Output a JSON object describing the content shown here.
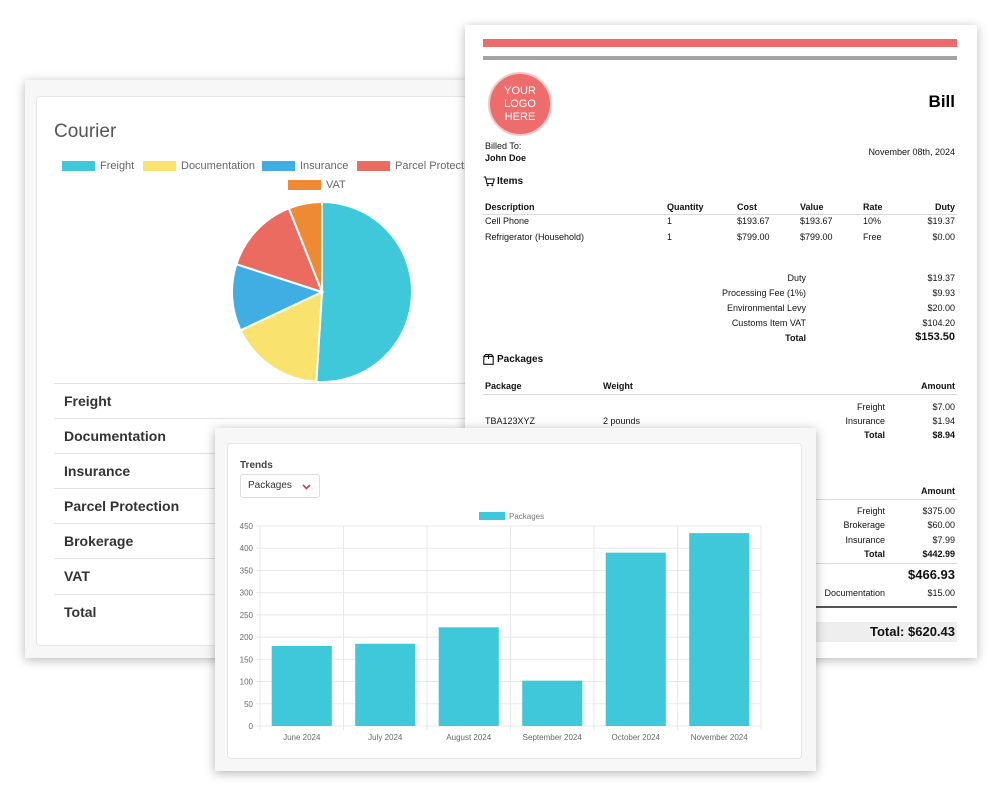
{
  "courier": {
    "title": "Courier",
    "legend": [
      {
        "label": "Freight",
        "color": "#3fc8da"
      },
      {
        "label": "Documentation",
        "color": "#fae26e"
      },
      {
        "label": "Insurance",
        "color": "#40aee3"
      },
      {
        "label": "Parcel Protection",
        "color": "#ec6b61"
      },
      {
        "label": "VAT",
        "color": "#ee8a33"
      }
    ],
    "rows": [
      "Freight",
      "Documentation",
      "Insurance",
      "Parcel Protection",
      "Brokerage",
      "VAT",
      "Total"
    ]
  },
  "chart_data": [
    {
      "type": "pie",
      "title": "Courier",
      "categories": [
        "Freight",
        "Documentation",
        "Insurance",
        "Parcel Protection",
        "VAT"
      ],
      "values": [
        51,
        17,
        12,
        14,
        6
      ],
      "colors": [
        "#3fc8da",
        "#fae26e",
        "#40aee3",
        "#ec6b61",
        "#ee8a33"
      ],
      "legend": "top"
    },
    {
      "type": "bar",
      "title": "Trends",
      "categories": [
        "June 2024",
        "July 2024",
        "August 2024",
        "September 2024",
        "October 2024",
        "November 2024"
      ],
      "series": [
        {
          "name": "Packages",
          "values": [
            180,
            185,
            222,
            102,
            390,
            434
          ],
          "color": "#3fc8da"
        }
      ],
      "ylim": [
        0,
        450
      ],
      "yticks": [
        0,
        50,
        100,
        150,
        200,
        250,
        300,
        350,
        400,
        450
      ],
      "grid": true,
      "legend": "top"
    }
  ],
  "bill": {
    "logo_text": [
      "YOUR",
      "LOGO",
      "HERE"
    ],
    "title": "Bill",
    "billed_to_label": "Billed To:",
    "billed_to_name": "John Doe",
    "date": "November 08th, 2024",
    "items_title": "Items",
    "items_headers": [
      "Description",
      "Quantity",
      "Cost",
      "Value",
      "Rate",
      "Duty"
    ],
    "items": [
      [
        "Cell Phone",
        "1",
        "$193.67",
        "$193.67",
        "10%",
        "$19.37"
      ],
      [
        "Refrigerator (Household)",
        "1",
        "$799.00",
        "$799.00",
        "Free",
        "$0.00"
      ]
    ],
    "item_summary": [
      {
        "label": "Duty",
        "value": "$19.37"
      },
      {
        "label": "Processing Fee (1%)",
        "value": "$9.93"
      },
      {
        "label": "Environmental Levy",
        "value": "$20.00"
      },
      {
        "label": "Customs Item VAT",
        "value": "$104.20"
      },
      {
        "label": "Total",
        "value": "$153.50"
      }
    ],
    "packages_title": "Packages",
    "packages_headers": [
      "Package",
      "Weight",
      "Amount"
    ],
    "package_id": "TBA123XYZ",
    "package_weight": "2 pounds",
    "package_charges": [
      {
        "label": "Freight",
        "value": "$7.00"
      },
      {
        "label": "Insurance",
        "value": "$1.94"
      },
      {
        "label": "Total",
        "value": "$8.94"
      }
    ],
    "amount_header_2": "Amount",
    "charges_2": [
      {
        "label": "Freight",
        "value": "$375.00"
      },
      {
        "label": "Brokerage",
        "value": "$60.00"
      },
      {
        "label": "Insurance",
        "value": "$7.99"
      },
      {
        "label": "Total",
        "value": "$442.99"
      }
    ],
    "subtotal_2": "$466.93",
    "documentation_label": "Documentation",
    "documentation_value": "$15.00",
    "grand_total": "Total: $620.43"
  },
  "trends": {
    "title": "Trends",
    "select_value": "Packages"
  },
  "icons": {
    "items": "cart-icon",
    "packages": "package-icon",
    "select": "chevron-down-icon"
  }
}
